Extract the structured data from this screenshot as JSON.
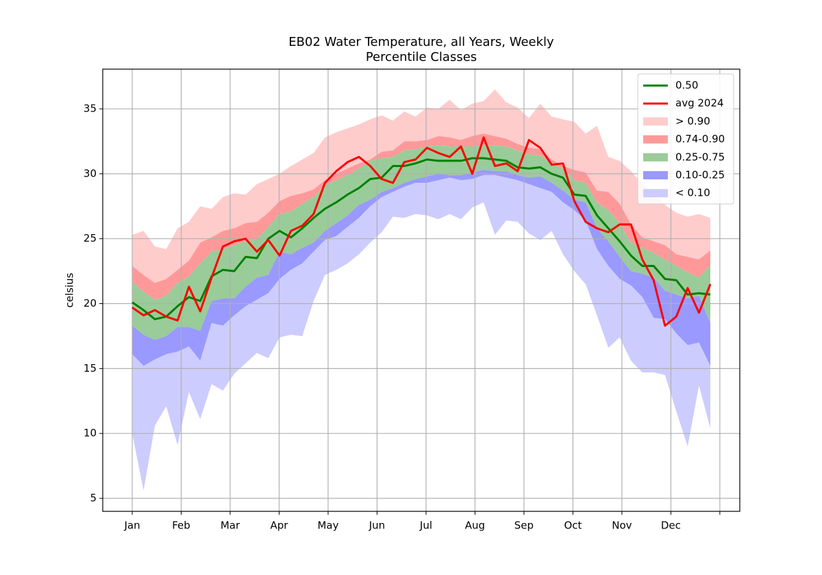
{
  "chart_data": {
    "type": "percentile_bands",
    "title": "EB02 Water Temperature, all Years, Weekly",
    "subtitle": "Percentile Classes",
    "y_label": "celsius",
    "x": [
      1,
      2,
      3,
      4,
      5,
      6,
      7,
      8,
      9,
      10,
      11,
      12,
      13,
      14,
      15,
      16,
      17,
      18,
      19,
      20,
      21,
      22,
      23,
      24,
      25,
      26,
      27,
      28,
      29,
      30,
      31,
      32,
      33,
      34,
      35,
      36,
      37,
      38,
      39,
      40,
      41,
      42,
      43,
      44,
      45,
      46,
      47,
      48,
      49,
      50,
      51,
      52
    ],
    "xlim": [
      -1.6,
      54.6
    ],
    "xticks": [
      {
        "value": 1,
        "label": "Jan"
      },
      {
        "value": 5.32,
        "label": "Feb"
      },
      {
        "value": 9.64,
        "label": "Mar"
      },
      {
        "value": 13.96,
        "label": "Apr"
      },
      {
        "value": 18.28,
        "label": "May"
      },
      {
        "value": 22.6,
        "label": "Jun"
      },
      {
        "value": 26.92,
        "label": "Jul"
      },
      {
        "value": 31.24,
        "label": "Aug"
      },
      {
        "value": 35.56,
        "label": "Sep"
      },
      {
        "value": 39.88,
        "label": "Oct"
      },
      {
        "value": 44.2,
        "label": "Nov"
      },
      {
        "value": 48.52,
        "label": "Dec"
      },
      {
        "value": 52.84
      }
    ],
    "ylim": [
      4.0,
      38.06
    ],
    "yticks": [
      5,
      10,
      15,
      20,
      25,
      30,
      35
    ],
    "grid": true,
    "legend": "upper right",
    "bounds": [
      {
        "values": [
          25.3,
          25.6,
          24.4,
          24.2,
          25.8,
          26.3,
          27.5,
          27.3,
          28.2,
          28.5,
          28.4,
          29.2,
          29.6,
          30.0,
          30.6,
          31.1,
          31.6,
          32.8,
          33.2,
          33.5,
          33.8,
          34.2,
          34.5,
          34.1,
          34.8,
          34.4,
          35.1,
          35.0,
          35.7,
          34.9,
          35.4,
          35.6,
          36.5,
          35.5,
          35.1,
          34.3,
          35.4,
          34.4,
          34.2,
          34.0,
          33.1,
          33.7,
          31.3,
          31.0,
          30.2,
          29.2,
          28.6,
          27.6,
          27.0,
          26.7,
          26.9,
          26.6
        ]
      },
      {
        "values": [
          22.9,
          22.2,
          21.6,
          21.9,
          22.6,
          23.3,
          24.7,
          25.1,
          25.6,
          25.8,
          26.2,
          26.3,
          27.0,
          27.9,
          28.3,
          28.5,
          28.8,
          29.5,
          30.0,
          30.4,
          30.8,
          31.1,
          31.7,
          31.8,
          32.5,
          32.5,
          32.6,
          32.9,
          32.8,
          32.6,
          32.9,
          33.1,
          32.9,
          32.7,
          32.3,
          32.0,
          31.9,
          31.1,
          30.6,
          30.3,
          30.1,
          28.7,
          28.6,
          27.7,
          26.1,
          25.1,
          24.8,
          24.5,
          23.8,
          23.6,
          23.4,
          24.1
        ]
      },
      {
        "values": [
          21.7,
          20.9,
          20.3,
          20.6,
          21.6,
          22.1,
          23.1,
          24.0,
          24.2,
          24.5,
          24.8,
          25.0,
          25.9,
          26.9,
          27.1,
          27.7,
          28.2,
          29.1,
          29.5,
          29.9,
          30.4,
          31.0,
          31.2,
          31.3,
          31.8,
          31.9,
          32.1,
          32.2,
          32.1,
          32.1,
          32.1,
          32.2,
          32.2,
          32.1,
          31.8,
          31.5,
          31.4,
          30.8,
          30.4,
          29.5,
          29.3,
          27.8,
          27.2,
          26.2,
          24.7,
          24.3,
          23.9,
          23.4,
          22.9,
          22.4,
          22.0,
          23.0
        ]
      },
      {
        "values": [
          18.3,
          17.6,
          17.2,
          17.5,
          18.2,
          18.2,
          17.9,
          20.2,
          20.4,
          20.4,
          21.3,
          22.0,
          22.2,
          24.0,
          23.8,
          24.3,
          24.7,
          25.6,
          26.2,
          26.8,
          27.6,
          28.0,
          28.6,
          28.9,
          29.3,
          29.6,
          29.8,
          30.0,
          29.9,
          29.9,
          30.1,
          30.3,
          30.2,
          30.2,
          29.9,
          29.7,
          29.8,
          29.3,
          28.7,
          28.0,
          27.8,
          25.8,
          24.8,
          23.6,
          22.5,
          22.3,
          22.0,
          21.0,
          20.7,
          20.4,
          20.6,
          18.5
        ]
      },
      {
        "values": [
          16.1,
          15.2,
          15.7,
          16.1,
          16.3,
          16.7,
          15.6,
          18.5,
          18.3,
          19.1,
          19.8,
          20.3,
          20.8,
          21.9,
          22.6,
          23.1,
          24.0,
          24.9,
          25.2,
          25.9,
          26.6,
          27.5,
          28.2,
          28.6,
          29.0,
          29.3,
          29.3,
          29.5,
          29.7,
          29.5,
          29.6,
          29.9,
          29.9,
          29.7,
          29.5,
          29.2,
          28.9,
          28.6,
          27.8,
          27.2,
          26.4,
          24.2,
          22.9,
          21.9,
          21.4,
          20.5,
          18.9,
          18.8,
          17.7,
          16.8,
          17.0,
          15.2
        ]
      },
      {
        "values": [
          10.0,
          5.6,
          10.6,
          12.1,
          9.1,
          13.2,
          11.1,
          13.8,
          13.3,
          14.6,
          15.4,
          16.2,
          15.8,
          17.4,
          17.6,
          17.5,
          20.2,
          22.2,
          22.6,
          23.1,
          23.8,
          24.7,
          25.5,
          26.7,
          26.6,
          26.9,
          26.8,
          26.5,
          26.9,
          26.5,
          27.4,
          27.8,
          25.3,
          26.4,
          26.3,
          25.4,
          24.9,
          25.6,
          23.8,
          22.5,
          21.5,
          19.1,
          16.6,
          17.4,
          15.6,
          14.7,
          14.7,
          14.5,
          11.7,
          9.0,
          13.7,
          10.4
        ]
      }
    ],
    "bands": [
      {
        "name": "> 0.90",
        "color": "#ffcccc"
      },
      {
        "name": "0.74-0.90",
        "color": "#ff9999"
      },
      {
        "name": "0.25-0.75",
        "color": "#99cc99"
      },
      {
        "name": "0.10-0.25",
        "color": "#9999ff"
      },
      {
        "name": "< 0.10",
        "color": "#ccccff"
      }
    ],
    "series": [
      {
        "name": "0.50",
        "color": "#008000",
        "values": [
          20.1,
          19.5,
          18.8,
          19.0,
          19.8,
          20.5,
          20.2,
          22.1,
          22.6,
          22.5,
          23.6,
          23.5,
          25.0,
          25.6,
          25.1,
          25.8,
          26.6,
          27.3,
          27.8,
          28.4,
          28.9,
          29.6,
          29.7,
          30.6,
          30.6,
          30.8,
          31.1,
          31.0,
          31.0,
          31.0,
          31.2,
          31.2,
          31.1,
          31.0,
          30.5,
          30.4,
          30.5,
          30.0,
          29.7,
          28.4,
          28.3,
          26.8,
          25.8,
          24.8,
          23.7,
          22.9,
          22.9,
          21.9,
          21.8,
          20.7,
          20.8,
          20.7
        ]
      },
      {
        "name": "avg 2024",
        "color": "#ff0000",
        "values": [
          19.7,
          19.1,
          19.5,
          19.0,
          18.7,
          21.3,
          19.4,
          22.0,
          24.4,
          24.8,
          25.0,
          24.0,
          24.9,
          23.7,
          25.6,
          26.0,
          26.9,
          29.3,
          30.2,
          30.9,
          31.3,
          30.6,
          29.6,
          29.3,
          30.9,
          31.1,
          32.0,
          31.6,
          31.3,
          32.1,
          30.0,
          32.8,
          30.6,
          30.8,
          30.2,
          32.6,
          32.0,
          30.7,
          30.8,
          27.9,
          26.3,
          25.8,
          25.5,
          26.1,
          26.1,
          23.4,
          21.8,
          18.3,
          19.0,
          21.2,
          19.3,
          21.5
        ]
      }
    ]
  }
}
